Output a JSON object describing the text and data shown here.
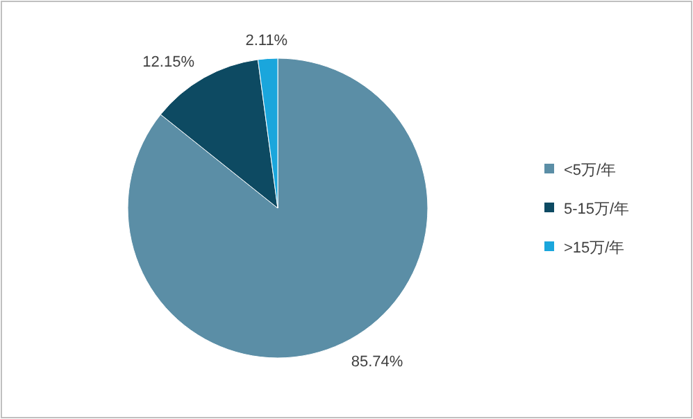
{
  "chart_data": {
    "type": "pie",
    "categories": [
      "<5万/年",
      "5-15万/年",
      ">15万/年"
    ],
    "values": [
      85.74,
      12.15,
      2.11
    ],
    "colors": [
      "#5b8ea6",
      "#0d4a62",
      "#1aa6dc"
    ],
    "value_labels": [
      "85.74%",
      "12.15%",
      "2.11%"
    ],
    "legend": "right"
  }
}
